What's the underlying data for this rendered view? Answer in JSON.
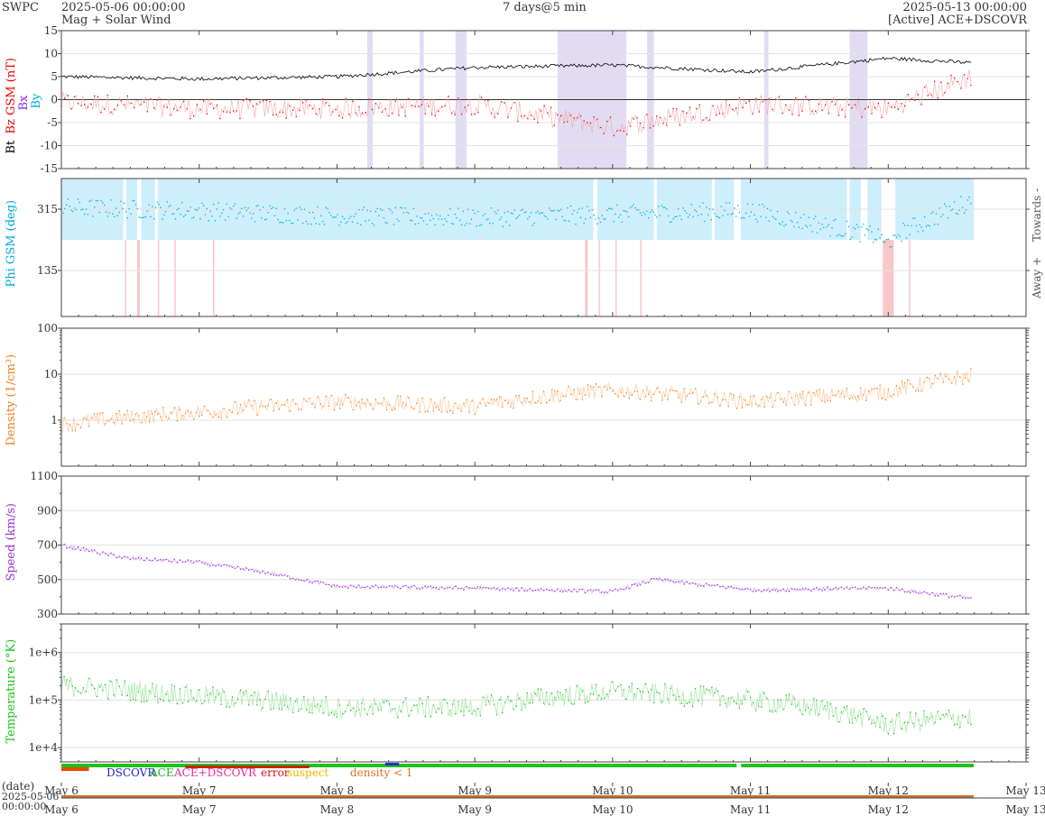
{
  "header": {
    "agency": "SWPC",
    "start_time": "2025-05-06 00:00:00",
    "subtitle": "Mag + Solar Wind",
    "span": "7 days@5 min",
    "end_time": "2025-05-13 00:00:00",
    "source": "[Active] ACE+DSCOVR"
  },
  "colors": {
    "bt": "#000000",
    "bz": "#ee0000",
    "bx": "#8a2be2",
    "by": "#00aadd",
    "phi": "#00aadd",
    "phi_towards_band": "#cdeefb",
    "phi_away_band": "#f8c8c8",
    "density": "#f07f1a",
    "speed": "#9b30d9",
    "temperature": "#1ec11e",
    "bz_neg_band": "#e2dcf3",
    "axis": "#444444",
    "grid": "#e3e3e3"
  },
  "x_axis": {
    "ticks": [
      "May 6",
      "May 7",
      "May 8",
      "May 9",
      "May 10",
      "May 11",
      "May 12",
      "May 13"
    ],
    "date_label": "(date)",
    "range_start_line1": "2025-05-06",
    "range_start_line2": "00:00:00"
  },
  "legend": {
    "dscovr": "DSCOVR",
    "ace": "ACE",
    "ace_dscovr": "ACE+DSCOVR",
    "error": "error",
    "suspect": "suspect",
    "density_lt1": "density < 1"
  },
  "chart_data": [
    {
      "type": "line",
      "id": "mag",
      "ylabel_parts": [
        "Bt",
        "Bz GSM (nT)"
      ],
      "component_labels": [
        "Bx",
        "By"
      ],
      "ylim": [
        -15,
        15
      ],
      "yticks": [
        "15",
        "10",
        "5",
        "0",
        "-5",
        "-10",
        "-15"
      ],
      "x": [
        "May 6",
        "May 7",
        "May 8",
        "May 9",
        "May 10",
        "May 11",
        "May 12",
        "May 12.6"
      ],
      "series": [
        {
          "name": "Bt",
          "values": [
            5,
            4.5,
            5,
            7,
            7.5,
            6,
            9,
            8
          ]
        },
        {
          "name": "Bz",
          "values": [
            -0.5,
            -2,
            -2,
            -1,
            -6,
            -1,
            -2,
            5
          ]
        }
      ]
    },
    {
      "type": "line",
      "id": "phi",
      "ylabel": "Phi GSM (deg)",
      "right_labels": [
        "Towards -",
        "Away +"
      ],
      "ylim": [
        0,
        405
      ],
      "yticks": [
        "315",
        "135"
      ],
      "x": [
        "May 6",
        "May 7",
        "May 8",
        "May 9",
        "May 10",
        "May 11",
        "May 12",
        "May 12.6"
      ],
      "values": [
        320,
        310,
        295,
        290,
        300,
        310,
        230,
        340
      ]
    },
    {
      "type": "line",
      "id": "density",
      "ylabel": "Density (1/cm³)",
      "yscale": "log",
      "ylim": [
        0.1,
        100
      ],
      "yticks": [
        "100",
        "10",
        "1"
      ],
      "x": [
        "May 6",
        "May 7",
        "May 8",
        "May 9",
        "May 10",
        "May 11",
        "May 12",
        "May 12.6"
      ],
      "values": [
        0.8,
        1.5,
        2.5,
        2,
        4.5,
        2.5,
        4,
        9
      ]
    },
    {
      "type": "line",
      "id": "speed",
      "ylabel": "Speed (km/s)",
      "ylim": [
        300,
        1100
      ],
      "yticks": [
        "1100",
        "900",
        "700",
        "500",
        "300"
      ],
      "x": [
        "May 6",
        "May 6.5",
        "May 7",
        "May 7.5",
        "May 8",
        "May 9",
        "May 10",
        "May 10.3",
        "May 11",
        "May 12",
        "May 12.6"
      ],
      "values": [
        700,
        620,
        600,
        540,
        460,
        450,
        430,
        500,
        440,
        450,
        390
      ]
    },
    {
      "type": "line",
      "id": "temperature",
      "ylabel": "Temperature (°K)",
      "yscale": "log",
      "ylim": [
        5000,
        4000000
      ],
      "yticks": [
        "1e+6",
        "1e+5",
        "1e+4"
      ],
      "x": [
        "May 6",
        "May 7",
        "May 8",
        "May 9",
        "May 10",
        "May 11",
        "May 12",
        "May 12.6"
      ],
      "values": [
        200000,
        120000,
        70000,
        70000,
        150000,
        100000,
        30000,
        45000
      ]
    }
  ]
}
